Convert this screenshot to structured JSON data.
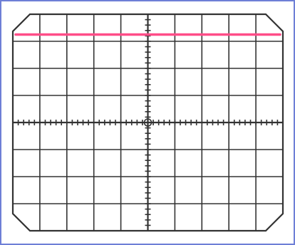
{
  "oscilloscope": {
    "divisions": {
      "horizontal": 10,
      "vertical": 8
    },
    "minor_ticks_per_division": 5,
    "trace": {
      "level_div": 3.25,
      "color": "#ff4d88"
    },
    "colors": {
      "frame_border": "#6e7fd6",
      "grid_line": "#333333",
      "tick": "#333333",
      "screen_background": "#ffffff"
    }
  }
}
